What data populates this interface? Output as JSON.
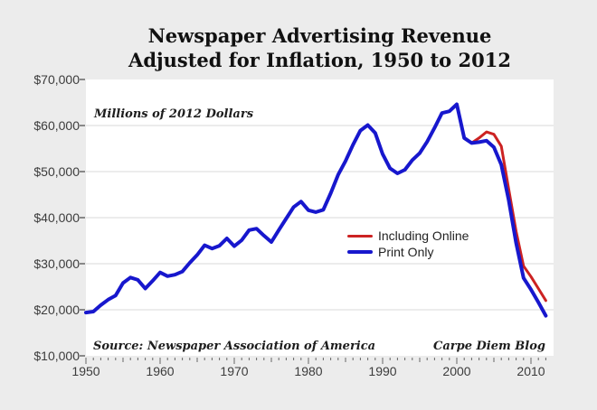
{
  "chart": {
    "title_line1": "Newspaper Advertising Revenue",
    "title_line2": "Adjusted for Inflation, 1950 to 2012",
    "units_note": "Millions of 2012 Dollars",
    "source": "Source: Newspaper Association of America",
    "credit": "Carpe Diem Blog"
  },
  "chart_data": {
    "type": "line",
    "title": "Newspaper Advertising Revenue Adjusted for Inflation, 1950 to 2012",
    "xlabel": "",
    "ylabel": "Millions of 2012 Dollars",
    "ylim": [
      10000,
      70000
    ],
    "xlim": [
      1950,
      2013
    ],
    "y_ticks": [
      10000,
      20000,
      30000,
      40000,
      50000,
      60000,
      70000
    ],
    "y_tick_labels": [
      "$10,000",
      "$20,000",
      "$30,000",
      "$40,000",
      "$50,000",
      "$60,000",
      "$70,000"
    ],
    "x_ticks": [
      1950,
      1960,
      1970,
      1980,
      1990,
      2000,
      2010
    ],
    "x_tick_labels": [
      "1950",
      "1960",
      "1970",
      "1980",
      "1990",
      "2000",
      "2010"
    ],
    "grid": "horizontal",
    "legend_position": "center-right",
    "colors": {
      "background": "#ececec",
      "plot_background": "#ffffff",
      "gridline": "#d8d8d8",
      "tick": "#666666",
      "including_online": "#cc2222",
      "print_only": "#1717cd"
    },
    "series": [
      {
        "name": "Including Online",
        "color": "#cc2222",
        "x": [
          2002,
          2003,
          2004,
          2005,
          2006,
          2007,
          2008,
          2009,
          2010,
          2011,
          2012
        ],
        "values": [
          56200,
          57300,
          58600,
          58100,
          55500,
          46200,
          37000,
          29500,
          27200,
          24600,
          22000
        ]
      },
      {
        "name": "Print Only",
        "color": "#1717cd",
        "x": [
          1950,
          1951,
          1952,
          1953,
          1954,
          1955,
          1956,
          1957,
          1958,
          1959,
          1960,
          1961,
          1962,
          1963,
          1964,
          1965,
          1966,
          1967,
          1968,
          1969,
          1970,
          1971,
          1972,
          1973,
          1974,
          1975,
          1976,
          1977,
          1978,
          1979,
          1980,
          1981,
          1982,
          1983,
          1984,
          1985,
          1986,
          1987,
          1988,
          1989,
          1990,
          1991,
          1992,
          1993,
          1994,
          1995,
          1996,
          1997,
          1998,
          1999,
          2000,
          2001,
          2002,
          2003,
          2004,
          2005,
          2006,
          2007,
          2008,
          2009,
          2010,
          2011,
          2012
        ],
        "values": [
          19400,
          19600,
          21000,
          22200,
          23100,
          25800,
          27000,
          26500,
          24600,
          26300,
          28100,
          27300,
          27600,
          28300,
          30200,
          31900,
          34000,
          33300,
          33900,
          35500,
          33800,
          35100,
          37300,
          37600,
          36100,
          34700,
          37300,
          39800,
          42300,
          43500,
          41600,
          41200,
          41700,
          45300,
          49300,
          52300,
          55800,
          58900,
          60100,
          58400,
          53800,
          50700,
          49600,
          50400,
          52500,
          54000,
          56500,
          59500,
          62700,
          63100,
          64600,
          57300,
          56200,
          56400,
          56700,
          55300,
          51500,
          43800,
          34500,
          26900,
          24400,
          21600,
          18700
        ]
      }
    ]
  }
}
